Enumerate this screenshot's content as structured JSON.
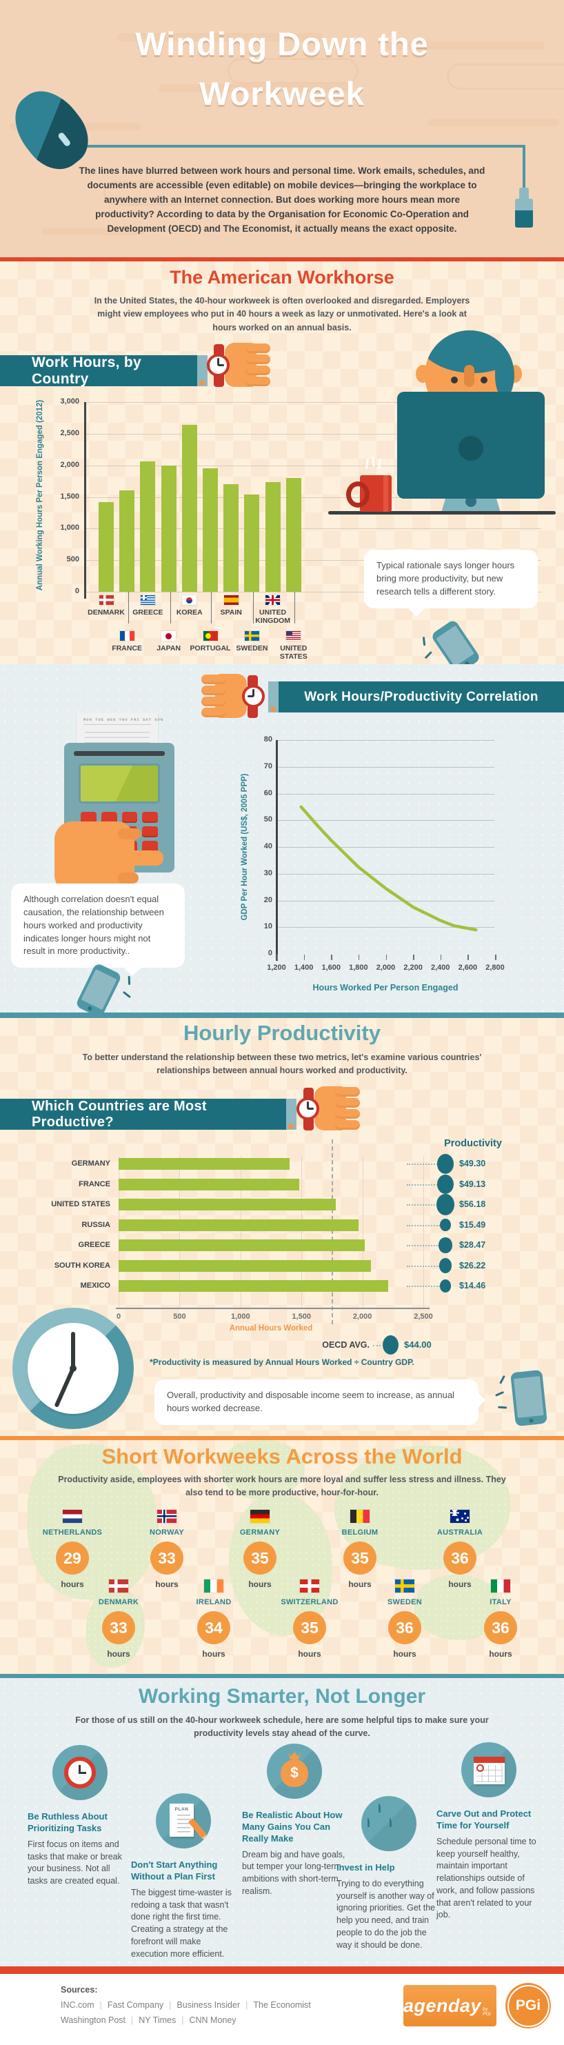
{
  "sections": {
    "header": {
      "title_line1": "Winding Down the",
      "title_line2": "Workweek",
      "intro": "The lines have blurred between work hours and personal time. Work emails, schedules, and documents are accessible (even editable) on mobile devices—bringing the workplace to anywhere with an Internet connection. But does working more hours mean more productivity? According to data by the Organisation for Economic Co-Operation and Development (OECD) and The Economist, it actually means the exact opposite."
    },
    "workhorse": {
      "heading": "The American Workhorse",
      "subtitle": "In the United States, the 40-hour workweek is often overlooked and disregarded. Employers might view employees who put in 40 hours a week as lazy or unmotivated. Here's a look at hours worked on an annual basis.",
      "banner": "Work Hours, by Country",
      "bubble": "Typical rationale says longer hours bring more productivity, but new research tells a different story."
    },
    "correlation": {
      "banner": "Work Hours/Productivity Correlation",
      "paper_days": "MON TUE WED THU FRI SAT SUN",
      "bubble": "Although correlation doesn't equal causation, the relationship between hours worked and productivity indicates longer hours might not result in more productivity.."
    },
    "hourly": {
      "heading": "Hourly Productivity",
      "subtitle": "To better understand the relationship between these two metrics, let's examine various countries' relationships between annual hours worked and productivity.",
      "banner": "Which Countries are Most Productive?",
      "bubble": "Overall, productivity and disposable income seem to increase, as annual hours worked decrease."
    },
    "shortweeks": {
      "heading": "Short Workweeks Across the World",
      "subtitle": "Productivity aside, employees with shorter work hours are more loyal and suffer less stress and illness. They also tend to be more productive, hour-for-hour.",
      "hours_label": "hours",
      "row1": [
        {
          "country": "NETHERLANDS",
          "hours": "29",
          "flag": "netherlands"
        },
        {
          "country": "NORWAY",
          "hours": "33",
          "flag": "norway"
        },
        {
          "country": "GERMANY",
          "hours": "35",
          "flag": "germany"
        },
        {
          "country": "BELGIUM",
          "hours": "35",
          "flag": "belgium"
        },
        {
          "country": "AUSTRALIA",
          "hours": "36",
          "flag": "australia"
        }
      ],
      "row2": [
        {
          "country": "DENMARK",
          "hours": "33",
          "flag": "denmark"
        },
        {
          "country": "IRELAND",
          "hours": "34",
          "flag": "ireland"
        },
        {
          "country": "SWITZERLAND",
          "hours": "35",
          "flag": "switzerland"
        },
        {
          "country": "SWEDEN",
          "hours": "36",
          "flag": "sweden"
        },
        {
          "country": "ITALY",
          "hours": "36",
          "flag": "italy"
        }
      ]
    },
    "smarter": {
      "heading": "Working Smarter, Not Longer",
      "subtitle": "For those of us still on the 40-hour workweek schedule, here are some helpful tips to make sure your productivity levels stay ahead of the curve.",
      "tips": [
        {
          "icon": "clock",
          "title": "Be Ruthless About Prioritizing Tasks",
          "body": "First focus on items and tasks that make or break your business. Not all tasks are created equal."
        },
        {
          "icon": "plan",
          "icon_label": "PLAN",
          "title": "Don't Start Anything Without a Plan First",
          "body": "The biggest time-waster is redoing a task that wasn't done right the first time. Creating a strategy at the forefront will make execution more efficient."
        },
        {
          "icon": "moneybag",
          "title": "Be Realistic About How Many Gains You Can Really Make",
          "body": "Dream big and have goals, but temper your long-term ambitions with short-term realism."
        },
        {
          "icon": "people",
          "title": "Invest in Help",
          "body": "Trying to do everything yourself is another way of ignoring priorities. Get the help you need, and train people to do the job the way it should be done."
        },
        {
          "icon": "calendar",
          "title": "Carve Out and Protect Time for Yourself",
          "body": "Schedule personal time to keep yourself healthy, maintain important relationships outside of work, and follow passions that aren't related to your job."
        }
      ]
    },
    "footer": {
      "sources_label": "Sources:",
      "line1_items": [
        "INC.com",
        "Fast Company",
        "Business Insider",
        "The Economist"
      ],
      "line2_items": [
        "Washington Post",
        "NY Times",
        "CNN Money"
      ],
      "brand1": "agenday",
      "brand1_sub": "by PGi",
      "brand2": "PGi"
    }
  },
  "colors": {
    "accent_red": "#e2472c",
    "teal_banner": "#1d6e7d",
    "teal_divider": "#4f97a5",
    "teal_heading": "#5ea7b3",
    "green_data": "#a2c13d",
    "orange": "#f49b42"
  },
  "chart_data": [
    {
      "id": "work-hours-by-country",
      "type": "bar",
      "title": "Work Hours, by Country",
      "xlabel": "",
      "ylabel": "Annual Working Hours Per Person Engaged (2012)",
      "ylim": [
        0,
        3000
      ],
      "yticks": [
        0,
        500,
        1000,
        1500,
        2000,
        2500,
        3000
      ],
      "categories": [
        "DENMARK",
        "FRANCE",
        "GREECE",
        "JAPAN",
        "KOREA",
        "PORTUGAL",
        "SPAIN",
        "SWEDEN",
        "UNITED KINGDOM",
        "UNITED STATES"
      ],
      "flags": [
        "denmark",
        "france",
        "greece",
        "japan",
        "korea",
        "portugal",
        "spain",
        "sweden",
        "uk",
        "us"
      ],
      "values": [
        1420,
        1600,
        2060,
        2000,
        2640,
        1950,
        1700,
        1540,
        1730,
        1800
      ],
      "bar_color": "#a2c13d",
      "grid": true,
      "legend_position": "none"
    },
    {
      "id": "hours-productivity-correlation",
      "type": "line",
      "title": "Work Hours/Productivity Correlation",
      "xlabel": "Hours Worked Per Person Engaged",
      "ylabel": "GDP Per Hour Worked (US$, 2005 PPP)",
      "xlim": [
        1200,
        2800
      ],
      "ylim": [
        0,
        80
      ],
      "xticks": [
        1200,
        1400,
        1600,
        1800,
        2000,
        2200,
        2400,
        2600,
        2800
      ],
      "yticks": [
        0,
        10,
        20,
        30,
        40,
        50,
        60,
        70,
        80
      ],
      "points": [
        [
          1380,
          55
        ],
        [
          1500,
          48
        ],
        [
          1600,
          42.5
        ],
        [
          1700,
          37.5
        ],
        [
          1800,
          32.5
        ],
        [
          1900,
          28.5
        ],
        [
          2000,
          24.5
        ],
        [
          2100,
          21
        ],
        [
          2200,
          17.5
        ],
        [
          2300,
          15
        ],
        [
          2400,
          12.5
        ],
        [
          2500,
          10.5
        ],
        [
          2660,
          9
        ]
      ],
      "line_color": "#a2c13d",
      "grid": true
    },
    {
      "id": "most-productive-countries",
      "type": "bar-horizontal",
      "title": "Which Countries are Most Productive?",
      "xlabel": "Annual Hours Worked",
      "legend": "Productivity",
      "xlim": [
        0,
        2500
      ],
      "xticks": [
        0,
        500,
        1000,
        1500,
        2000,
        2500
      ],
      "categories": [
        "GERMANY",
        "FRANCE",
        "UNITED STATES",
        "RUSSIA",
        "GREECE",
        "SOUTH KOREA",
        "MEXICO"
      ],
      "hours": [
        1400,
        1480,
        1780,
        1970,
        2020,
        2070,
        2210
      ],
      "productivity_labels": [
        "$49.30",
        "$49.13",
        "$56.18",
        "$15.49",
        "$28.47",
        "$26.22",
        "$14.46"
      ],
      "productivity_values": [
        49.3,
        49.13,
        56.18,
        15.49,
        28.47,
        26.22,
        14.46
      ],
      "oecd_avg": {
        "label": "OECD AVG.",
        "value": "$44.00",
        "value_number": 44.0,
        "dashed_line_hours": 1750
      },
      "footnote": "*Productivity is measured by Annual Hours Worked ÷ Country GDP.",
      "bar_color": "#a2c13d",
      "dot_color": "#1d6e7d"
    }
  ]
}
